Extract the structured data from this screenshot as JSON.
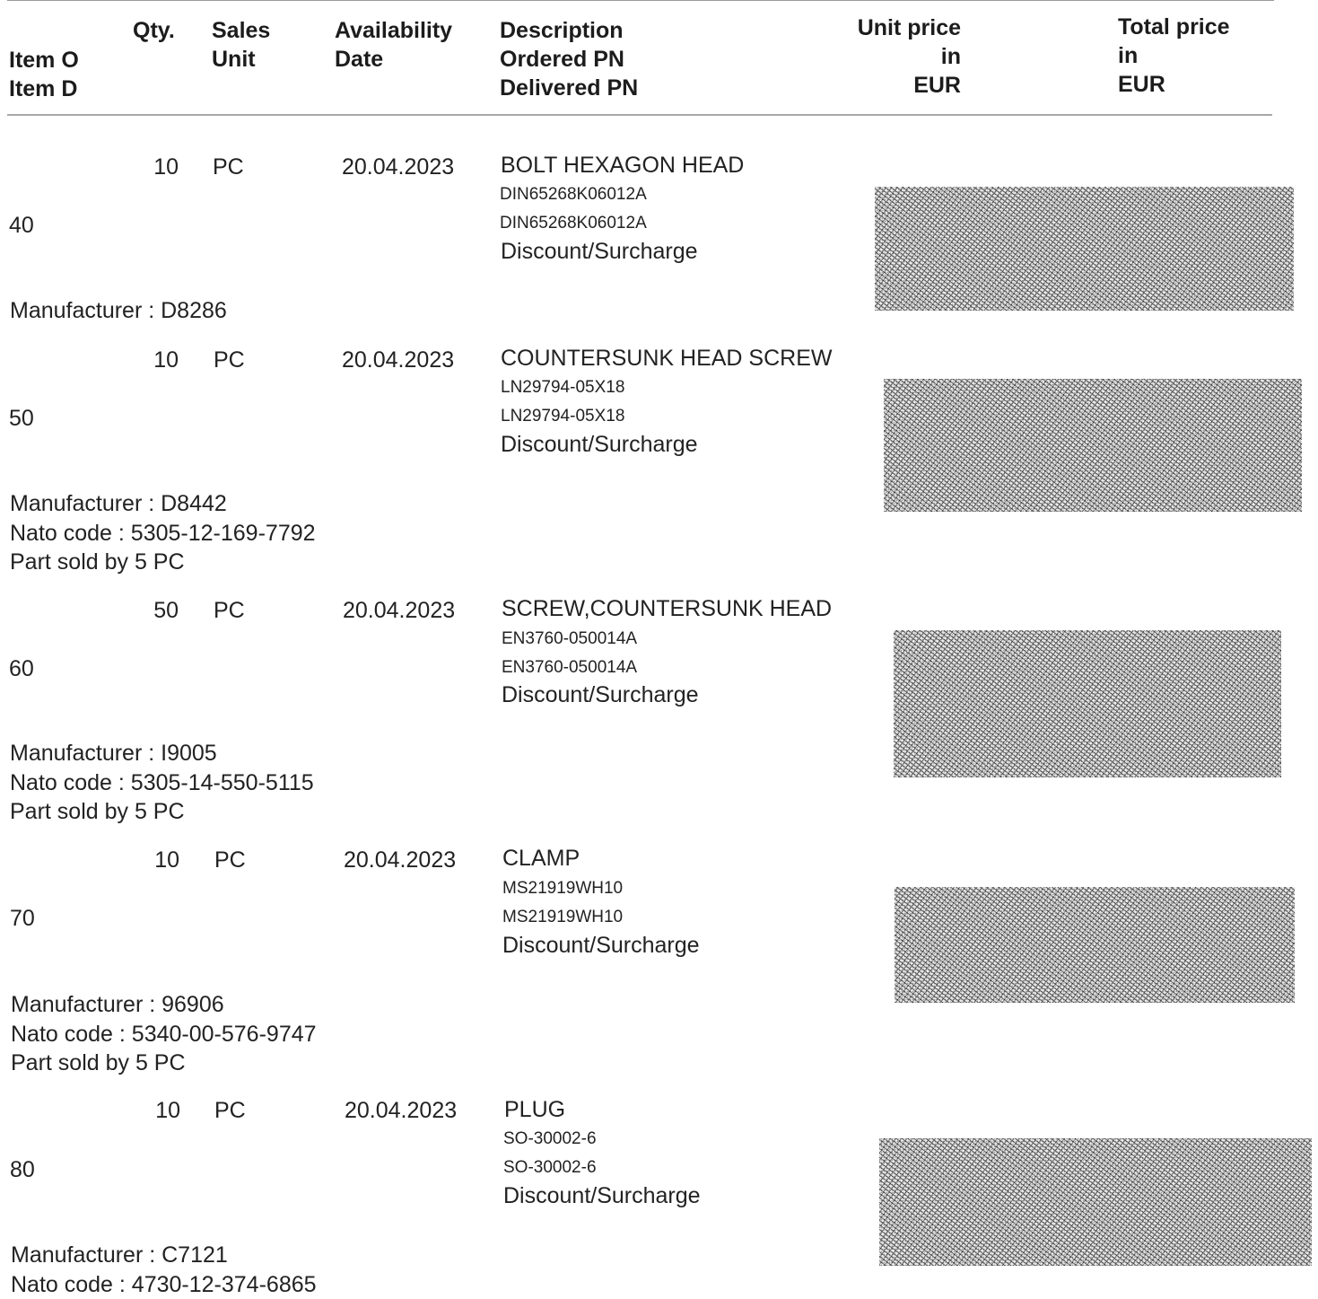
{
  "header": {
    "item_o": "Item O",
    "item_d": "Item D",
    "qty": "Qty.",
    "sales": "Sales",
    "unit": "Unit",
    "availability": "Availability",
    "date": "Date",
    "description": "Description",
    "ordered_pn": "Ordered PN",
    "delivered_pn": "Delivered PN",
    "unit_price": "Unit price",
    "unit_price_in": "in",
    "unit_price_cur": "EUR",
    "total_price": "Total price",
    "total_price_in": "in",
    "total_price_cur": "EUR"
  },
  "items": [
    {
      "item": "40",
      "qty": "10",
      "unit": "PC",
      "date": "20.04.2023",
      "description": "BOLT HEXAGON HEAD",
      "ordered_pn": "DIN65268K06012A",
      "delivered_pn": "DIN65268K06012A",
      "discount": "Discount/Surcharge",
      "notes": [
        "Manufacturer : D8286"
      ]
    },
    {
      "item": "50",
      "qty": "10",
      "unit": "PC",
      "date": "20.04.2023",
      "description": "COUNTERSUNK HEAD SCREW",
      "ordered_pn": "LN29794-05X18",
      "delivered_pn": "LN29794-05X18",
      "discount": "Discount/Surcharge",
      "notes": [
        "Manufacturer : D8442",
        "Nato code : 5305-12-169-7792",
        "Part sold by 5 PC"
      ]
    },
    {
      "item": "60",
      "qty": "50",
      "unit": "PC",
      "date": "20.04.2023",
      "description": "SCREW,COUNTERSUNK HEAD",
      "ordered_pn": "EN3760-050014A",
      "delivered_pn": "EN3760-050014A",
      "discount": "Discount/Surcharge",
      "notes": [
        "Manufacturer : I9005",
        "Nato code : 5305-14-550-5115",
        "Part sold by 5 PC"
      ]
    },
    {
      "item": "70",
      "qty": "10",
      "unit": "PC",
      "date": "20.04.2023",
      "description": "CLAMP",
      "ordered_pn": "MS21919WH10",
      "delivered_pn": "MS21919WH10",
      "discount": "Discount/Surcharge",
      "notes": [
        "Manufacturer : 96906",
        "Nato code : 5340-00-576-9747",
        "Part sold by 5 PC"
      ]
    },
    {
      "item": "80",
      "qty": "10",
      "unit": "PC",
      "date": "20.04.2023",
      "description": "PLUG",
      "ordered_pn": "SO-30002-6",
      "delivered_pn": "SO-30002-6",
      "discount": "Discount/Surcharge",
      "notes": [
        "Manufacturer : C7121",
        "Nato code : 4730-12-374-6865"
      ]
    }
  ]
}
